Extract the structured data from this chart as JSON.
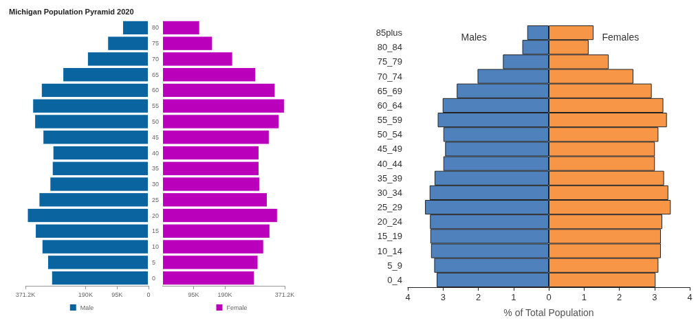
{
  "chart_data": [
    {
      "type": "bar",
      "orientation": "horizontal",
      "title": "Michigan Population Pyramid 2020",
      "categories": [
        "80",
        "75",
        "70",
        "65",
        "60",
        "55",
        "50",
        "45",
        "40",
        "35",
        "30",
        "25",
        "20",
        "15",
        "10",
        "5",
        "0"
      ],
      "series": [
        {
          "name": "Male",
          "color": "#0a64a0",
          "values": [
            79000,
            124000,
            185000,
            259000,
            324000,
            350000,
            344000,
            319000,
            289000,
            291000,
            298000,
            331000,
            366000,
            342000,
            322000,
            305000,
            293000
          ]
        }
      ],
      "xlim": [
        371200,
        0
      ],
      "xticks": [
        {
          "value": 371200,
          "label": "371.2K"
        },
        {
          "value": 190000,
          "label": "190K"
        },
        {
          "value": 95000,
          "label": "95K"
        },
        0
      ],
      "legend": "bottom",
      "grid": false
    },
    {
      "type": "bar",
      "orientation": "horizontal",
      "categories": [
        "80",
        "75",
        "70",
        "65",
        "60",
        "55",
        "50",
        "45",
        "40",
        "35",
        "30",
        "25",
        "20",
        "15",
        "10",
        "5",
        "0"
      ],
      "series": [
        {
          "name": "Female",
          "color": "#bb00bb",
          "values": [
            114000,
            153000,
            214000,
            284000,
            343000,
            371000,
            355000,
            325000,
            294000,
            294000,
            296000,
            319000,
            350000,
            327000,
            308000,
            291000,
            280000
          ]
        }
      ],
      "xlim": [
        0,
        371200
      ],
      "xticks": [
        {
          "value": 95000,
          "label": "95K"
        },
        {
          "value": 190000,
          "label": "190K"
        },
        {
          "value": 371200,
          "label": "371.2K"
        }
      ],
      "tick_labels": "x",
      "legend": "bottom",
      "grid": false
    },
    {
      "type": "bar",
      "orientation": "horizontal",
      "xlabel": "% of Total Population",
      "categories": [
        "85plus",
        "80_84",
        "75_79",
        "70_74",
        "65_69",
        "60_64",
        "55_59",
        "50_54",
        "45_49",
        "40_44",
        "35_39",
        "30_34",
        "25_29",
        "20_24",
        "15_19",
        "10_14",
        "5_9",
        "0_4"
      ],
      "series": [
        {
          "name": "Males",
          "color": "#4f81bd",
          "values": [
            -0.61,
            -0.75,
            -1.3,
            -2.02,
            -2.61,
            -3.01,
            -3.15,
            -2.99,
            -2.94,
            -2.99,
            -3.24,
            -3.38,
            -3.51,
            -3.37,
            -3.36,
            -3.34,
            -3.25,
            -3.18
          ]
        },
        {
          "name": "Females",
          "color": "#f79646",
          "values": [
            1.27,
            1.13,
            1.7,
            2.4,
            2.92,
            3.25,
            3.35,
            3.11,
            3.01,
            3.01,
            3.27,
            3.39,
            3.46,
            3.22,
            3.18,
            3.18,
            3.11,
            3.03
          ]
        }
      ],
      "stacked": true,
      "xlim": [
        -4,
        4
      ],
      "xticks": [
        {
          "value": -4,
          "label": "4"
        },
        {
          "value": -3,
          "label": "3"
        },
        {
          "value": -2,
          "label": "2"
        },
        {
          "value": -1,
          "label": "1"
        },
        0,
        1,
        2,
        3,
        4
      ],
      "legend": false,
      "grid": false
    }
  ]
}
